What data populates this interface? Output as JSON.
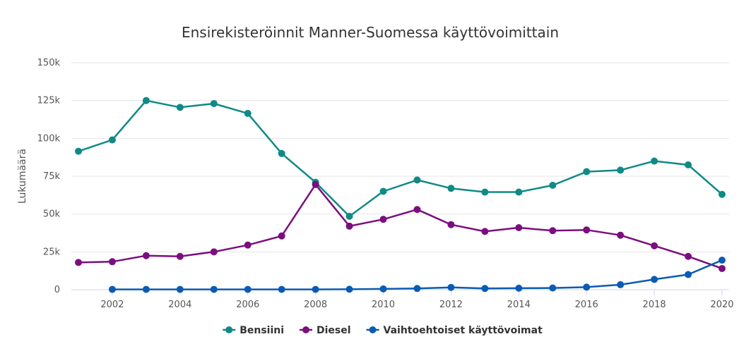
{
  "chart_data": {
    "type": "line",
    "title": "Ensirekisteröinnit Manner-Suomessa käyttövoimittain",
    "ylabel": "Lukumäärä",
    "xlabel": "",
    "xlim": [
      2001,
      2020
    ],
    "ylim": [
      0,
      150000
    ],
    "x_ticks": [
      2002,
      2004,
      2006,
      2008,
      2010,
      2012,
      2014,
      2016,
      2018,
      2020
    ],
    "y_ticks": [
      {
        "value": 0,
        "label": "0"
      },
      {
        "value": 25000,
        "label": "25k"
      },
      {
        "value": 50000,
        "label": "50k"
      },
      {
        "value": 75000,
        "label": "75k"
      },
      {
        "value": 100000,
        "label": "100k"
      },
      {
        "value": 125000,
        "label": "125k"
      },
      {
        "value": 150000,
        "label": "150k"
      }
    ],
    "grid": true,
    "legend_position": "bottom-center",
    "series": [
      {
        "name": "Bensiini",
        "color": "#0f8a86",
        "x": [
          2001,
          2002,
          2003,
          2004,
          2005,
          2006,
          2007,
          2008,
          2009,
          2010,
          2011,
          2012,
          2013,
          2014,
          2015,
          2016,
          2017,
          2018,
          2019,
          2020
        ],
        "values": [
          91500,
          99000,
          125000,
          120500,
          123000,
          116500,
          90000,
          71000,
          48500,
          65000,
          72500,
          67000,
          64500,
          64500,
          69000,
          78000,
          79000,
          85000,
          82500,
          63000
        ]
      },
      {
        "name": "Diesel",
        "color": "#7b0e7f",
        "x": [
          2001,
          2002,
          2003,
          2004,
          2005,
          2006,
          2007,
          2008,
          2009,
          2010,
          2011,
          2012,
          2013,
          2014,
          2015,
          2016,
          2017,
          2018,
          2019,
          2020
        ],
        "values": [
          18000,
          18500,
          22500,
          22000,
          25000,
          29500,
          35500,
          69500,
          42000,
          46500,
          53000,
          43000,
          38500,
          41000,
          39000,
          39500,
          36000,
          29000,
          22000,
          14000
        ]
      },
      {
        "name": "Vaihtoehtoiset käyttövoimat",
        "color": "#0b5bb5",
        "x": [
          2002,
          2003,
          2004,
          2005,
          2006,
          2007,
          2008,
          2009,
          2010,
          2011,
          2012,
          2013,
          2014,
          2015,
          2016,
          2017,
          2018,
          2019,
          2020
        ],
        "values": [
          200,
          200,
          200,
          200,
          200,
          200,
          200,
          300,
          500,
          800,
          1500,
          800,
          1000,
          1100,
          1700,
          3300,
          6800,
          10000,
          19500
        ]
      }
    ]
  }
}
